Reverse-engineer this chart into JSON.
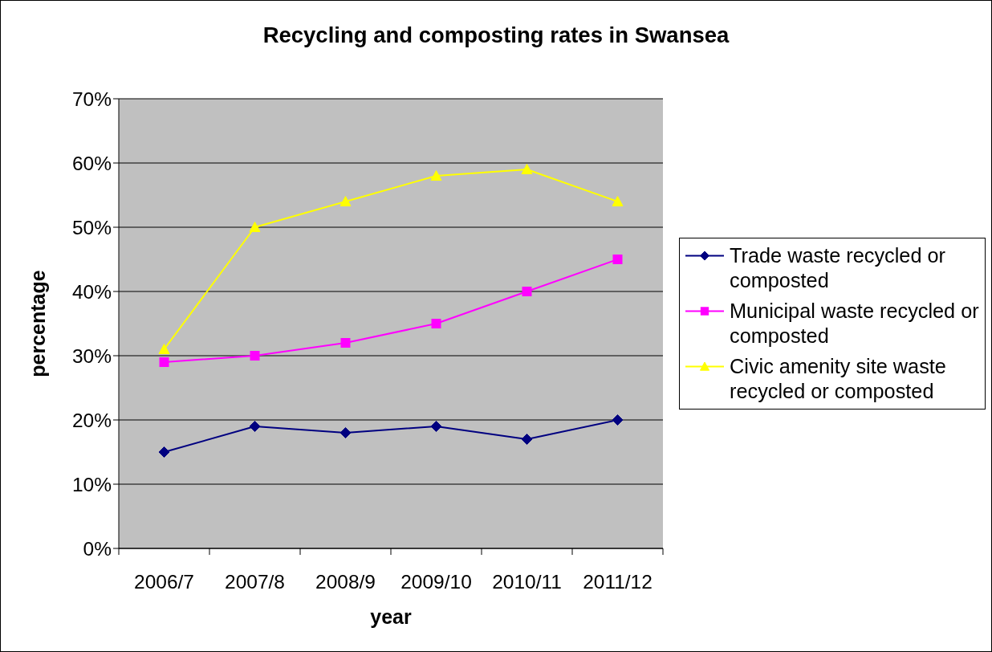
{
  "chart_data": {
    "type": "line",
    "title": "Recycling and composting rates in Swansea",
    "xlabel": "year",
    "ylabel": "percentage",
    "categories": [
      "2006/7",
      "2007/8",
      "2008/9",
      "2009/10",
      "2010/11",
      "2011/12"
    ],
    "series": [
      {
        "name": "Trade waste recycled or composted",
        "color": "#000080",
        "marker": "diamond",
        "values": [
          15,
          19,
          18,
          19,
          17,
          20
        ]
      },
      {
        "name": "Municipal waste recycled or composted",
        "color": "#ff00ff",
        "marker": "square",
        "values": [
          29,
          30,
          32,
          35,
          40,
          45
        ]
      },
      {
        "name": "Civic amenity site waste recycled or composted",
        "color": "#ffff00",
        "marker": "triangle",
        "values": [
          31,
          50,
          54,
          58,
          59,
          54
        ]
      }
    ],
    "ylim": [
      0,
      70
    ],
    "yticks": [
      {
        "value": 0,
        "label": "0%"
      },
      {
        "value": 10,
        "label": "10%"
      },
      {
        "value": 20,
        "label": "20%"
      },
      {
        "value": 30,
        "label": "30%"
      },
      {
        "value": 40,
        "label": "40%"
      },
      {
        "value": 50,
        "label": "50%"
      },
      {
        "value": 60,
        "label": "60%"
      },
      {
        "value": 70,
        "label": "70%"
      }
    ],
    "grid": "y",
    "legend": "right"
  }
}
